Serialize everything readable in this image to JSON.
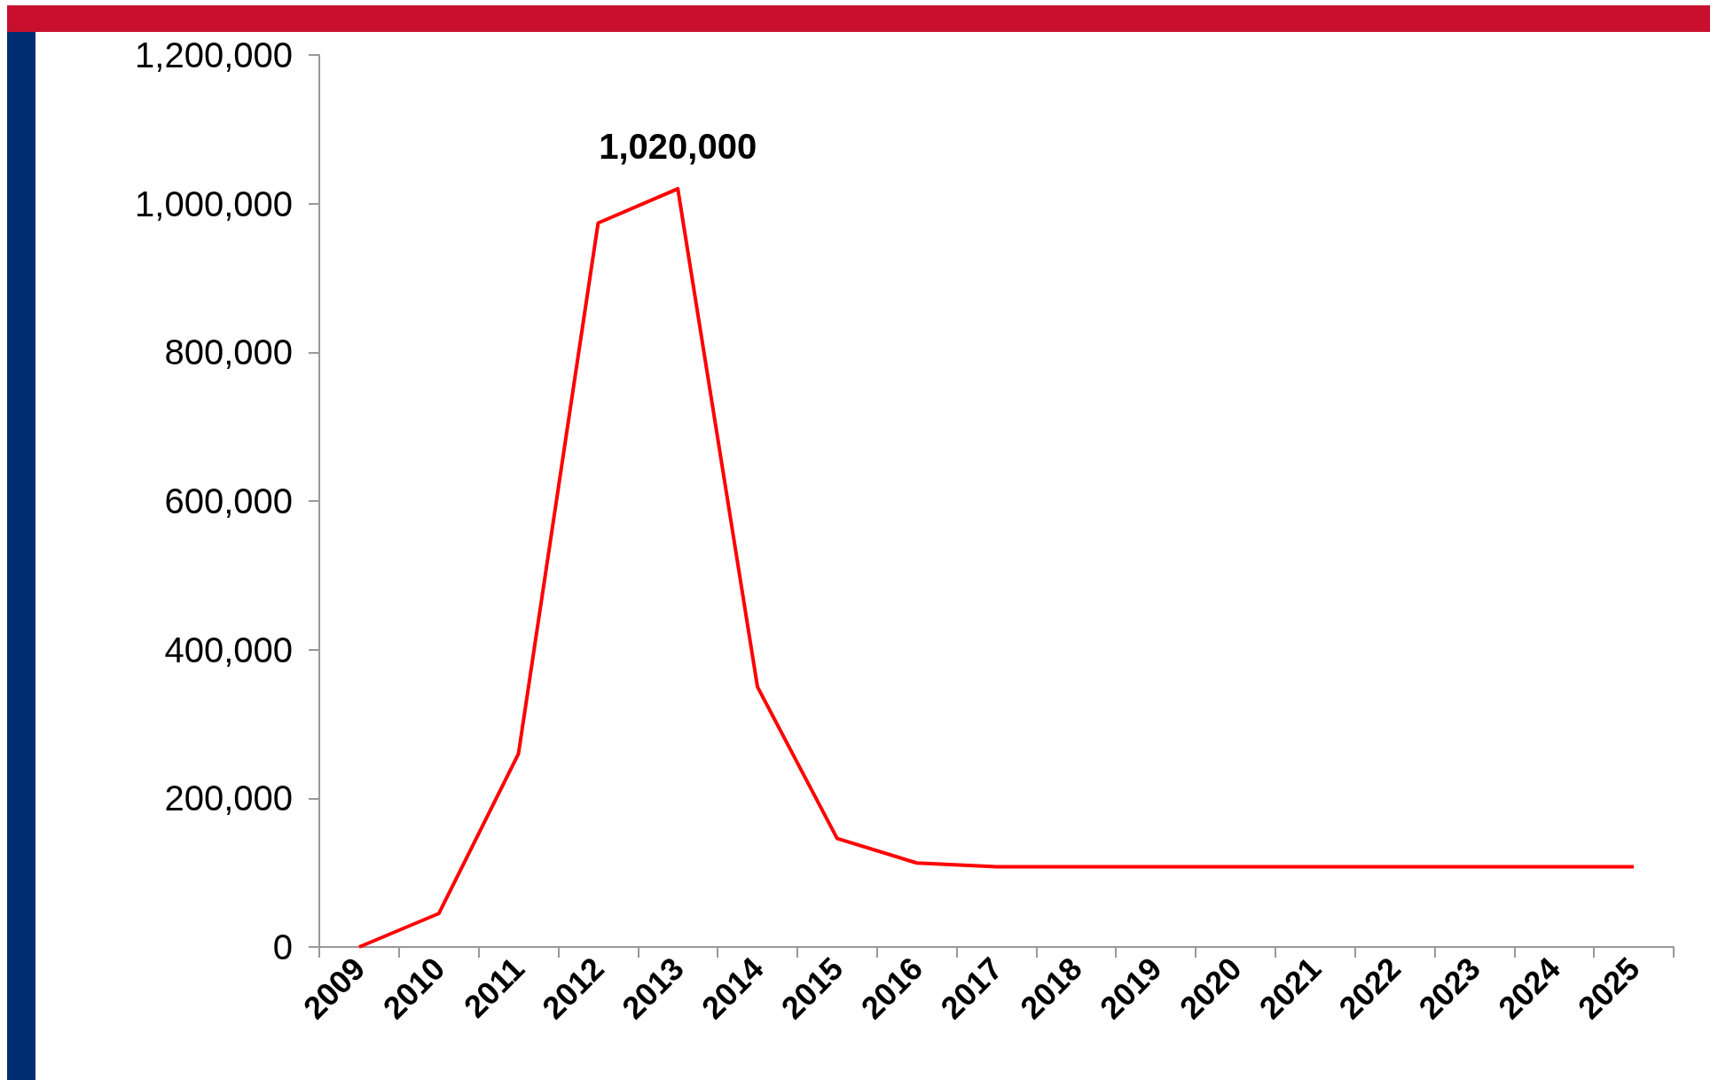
{
  "chart_data": {
    "type": "line",
    "categories": [
      "2009",
      "2010",
      "2011",
      "2012",
      "2013",
      "2014",
      "2015",
      "2016",
      "2017",
      "2018",
      "2019",
      "2020",
      "2021",
      "2022",
      "2023",
      "2024",
      "2025"
    ],
    "values": [
      0,
      45000,
      260000,
      974000,
      1020000,
      350000,
      146000,
      113000,
      108000,
      108000,
      108000,
      108000,
      108000,
      108000,
      108000,
      108000,
      108000
    ],
    "value_labels": [
      null,
      null,
      null,
      null,
      "1,020,000",
      null,
      null,
      null,
      null,
      null,
      null,
      null,
      null,
      null,
      null,
      null,
      null
    ],
    "color": "#ff0000",
    "ylim": [
      0,
      1200000
    ],
    "yticks": [
      0,
      {
        "value": 200000,
        "label": "200,000"
      },
      {
        "value": 400000,
        "label": "400,000"
      },
      {
        "value": 600000,
        "label": "600,000"
      },
      {
        "value": 800000,
        "label": "800,000"
      },
      {
        "value": 1000000,
        "label": "1,000,000"
      },
      {
        "value": 1200000,
        "label": "1,200,000"
      }
    ],
    "grid": false,
    "marker": "none",
    "line_style": "solid"
  }
}
